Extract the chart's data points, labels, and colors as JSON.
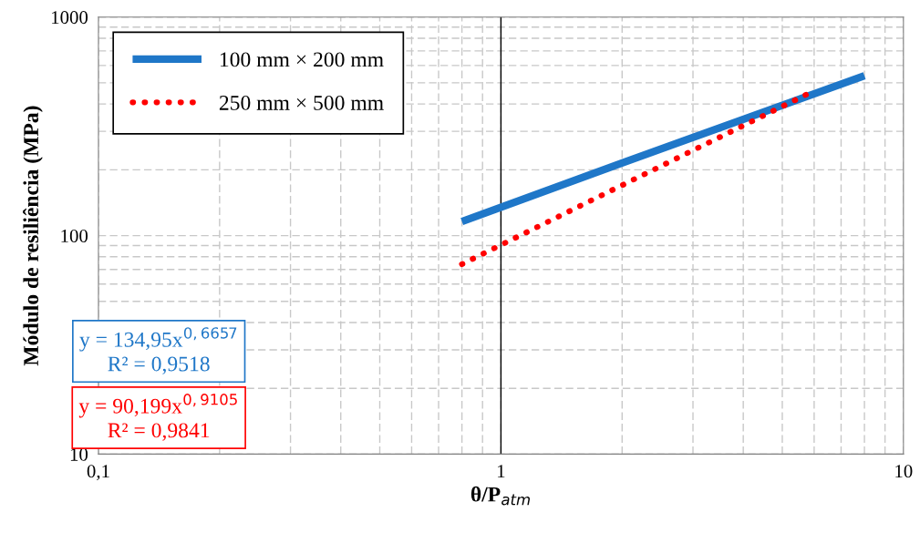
{
  "chart_data": {
    "type": "line",
    "xlabel": "θ/P$_{atm}$",
    "ylabel": "Módulo de resiliência (MPa)",
    "log": "xy",
    "grid": true,
    "legend": "top left",
    "marker": "none",
    "xlim": [
      0.1,
      10
    ],
    "ylim": [
      10,
      1000
    ],
    "xticks": [
      {
        "value": 0.1,
        "label": "0,1"
      },
      {
        "value": 0.2,
        "label": null
      },
      {
        "value": 0.3,
        "label": null
      },
      {
        "value": 0.4,
        "label": null
      },
      {
        "value": 0.5,
        "label": null
      },
      {
        "value": 0.6,
        "label": null
      },
      {
        "value": 0.7,
        "label": null
      },
      {
        "value": 0.8,
        "label": null
      },
      {
        "value": 0.9,
        "label": null
      },
      1,
      {
        "value": 2,
        "label": null
      },
      {
        "value": 3,
        "label": null
      },
      {
        "value": 4,
        "label": null
      },
      {
        "value": 5,
        "label": null
      },
      {
        "value": 6,
        "label": null
      },
      {
        "value": 7,
        "label": null
      },
      {
        "value": 8,
        "label": null
      },
      {
        "value": 9,
        "label": null
      },
      10
    ],
    "yticks": [
      10,
      {
        "value": 20,
        "label": null
      },
      {
        "value": 30,
        "label": null
      },
      {
        "value": 40,
        "label": null
      },
      {
        "value": 50,
        "label": null
      },
      {
        "value": 60,
        "label": null
      },
      {
        "value": 70,
        "label": null
      },
      {
        "value": 80,
        "label": null
      },
      {
        "value": 90,
        "label": null
      },
      100,
      {
        "value": 200,
        "label": null
      },
      {
        "value": 300,
        "label": null
      },
      {
        "value": 400,
        "label": null
      },
      {
        "value": 500,
        "label": null
      },
      {
        "value": 600,
        "label": null
      },
      {
        "value": 700,
        "label": null
      },
      {
        "value": 800,
        "label": null
      },
      {
        "value": 900,
        "label": null
      },
      1000
    ],
    "ref_lines": [
      {
        "axis": "x",
        "value": 1,
        "color": "#000000",
        "line_style": "solid"
      }
    ],
    "series": [
      {
        "name": "100 mm × 200 mm",
        "color": "#1f77c8",
        "line_style": "solid",
        "x": [
          0.8,
          2,
          8
        ],
        "values": [
          116,
          215,
          539
        ]
      },
      {
        "name": "250 mm × 500 mm",
        "color": "#ff0000",
        "line_style": "dotted",
        "x": [
          0.8,
          2,
          6
        ],
        "values": [
          74,
          170,
          460
        ]
      }
    ],
    "annotations": [
      "y = 134,95x$^{0,6657}$\nR² = 0,9518",
      "y = 90,199x$^{0,9105}$\nR² = 0,9841"
    ]
  }
}
